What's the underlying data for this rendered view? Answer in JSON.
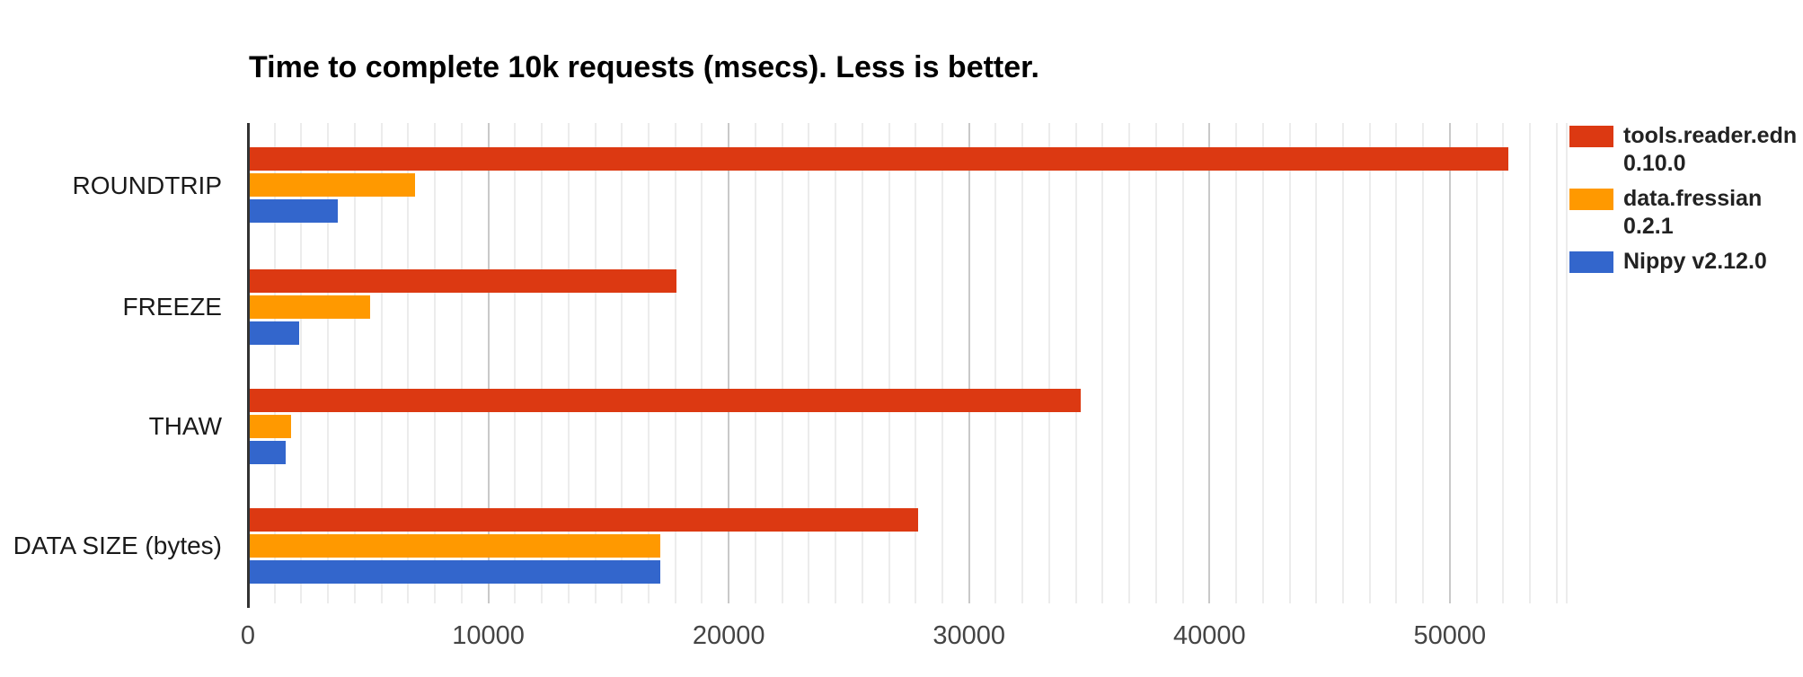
{
  "page": {
    "background": "#ffffff"
  },
  "chart_data": {
    "type": "bar",
    "orientation": "horizontal",
    "title": "Time to complete 10k requests (msecs). Less is better.",
    "categories": [
      "ROUNDTRIP",
      "FREEZE",
      "THAW",
      "DATA SIZE (bytes)"
    ],
    "series": [
      {
        "name": "tools.reader.edn 0.10.0",
        "color": "#DC3912",
        "values": [
          52400,
          17800,
          34600,
          27850
        ]
      },
      {
        "name": "data.fressian 0.2.1",
        "color": "#FF9900",
        "values": [
          6900,
          5050,
          1750,
          17100
        ]
      },
      {
        "name": "Nippy v2.12.0",
        "color": "#3366CC",
        "values": [
          3700,
          2100,
          1550,
          17100
        ]
      }
    ],
    "xlabel": "",
    "ylabel": "",
    "x_ticks": [
      0,
      10000,
      20000,
      30000,
      40000,
      50000
    ],
    "xlim": [
      0,
      54900
    ],
    "grid": true,
    "legend_position": "right",
    "colors": {
      "title_text": "#000000",
      "category_text": "#1a1a1a",
      "tick_text": "#444444",
      "axis_line": "#333333",
      "major_gridline": "#c9c9c9",
      "minor_gridline": "#ececec",
      "legend_text": "#222222"
    }
  }
}
